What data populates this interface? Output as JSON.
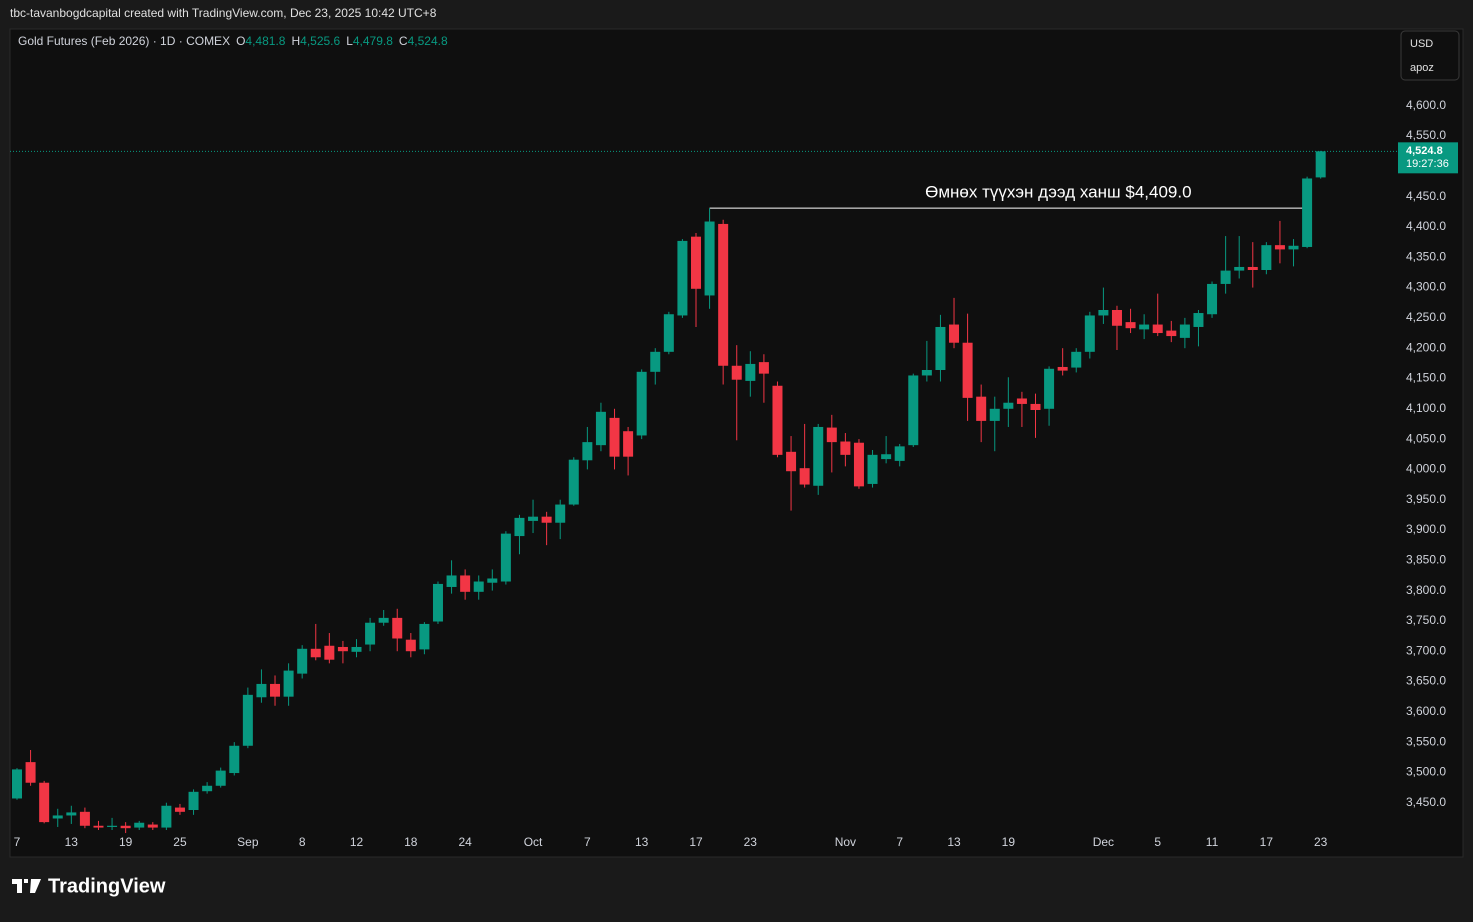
{
  "top_bar": "tbc-tavanbogdcapital created with TradingView.com, Dec 23, 2025 10:42 UTC+8",
  "logo": "TradingView",
  "header": {
    "symbol": "Gold Futures (Feb 2026) · 1D · COMEX",
    "ohlc": [
      {
        "key": "O",
        "label": "4,481.8"
      },
      {
        "key": "H",
        "label": "4,525.6"
      },
      {
        "key": "L",
        "label": "4,479.8"
      },
      {
        "key": "C",
        "label": "4,524.8"
      }
    ]
  },
  "currency": "USD",
  "unit_label": "apoz",
  "last_price": {
    "label": "4,524.8",
    "countdown": "19:27:36"
  },
  "chart_data": {
    "type": "candlestick",
    "annotation": "Өмнөх түүхэн дээд ханш $4,409.0",
    "up_color": "#089981",
    "down_color": "#f23645",
    "grid": false,
    "categories": [
      "7",
      null,
      null,
      null,
      "13",
      null,
      null,
      null,
      "19",
      null,
      null,
      null,
      "25",
      null,
      null,
      null,
      null,
      "Sep",
      null,
      null,
      null,
      "8",
      null,
      null,
      null,
      "12",
      null,
      null,
      null,
      "18",
      null,
      null,
      null,
      "24",
      null,
      null,
      null,
      null,
      "Oct",
      null,
      null,
      null,
      "7",
      null,
      null,
      null,
      "13",
      null,
      null,
      null,
      "17",
      null,
      null,
      null,
      "23",
      null,
      null,
      null,
      null,
      null,
      null,
      "Nov",
      null,
      null,
      null,
      "7",
      null,
      null,
      null,
      "13",
      null,
      null,
      null,
      "19",
      null,
      null,
      null,
      null,
      null,
      null,
      "Dec",
      null,
      null,
      null,
      "5",
      null,
      null,
      null,
      "11",
      null,
      null,
      null,
      "17",
      null,
      null,
      null,
      "23"
    ],
    "open": [
      3457,
      3517,
      3483,
      3424,
      3429,
      3435,
      3412,
      3410,
      3412,
      3409,
      3414,
      3409,
      3442,
      3438,
      3469,
      3478,
      3499,
      3544,
      3624,
      3646,
      3625,
      3663,
      3704,
      3709,
      3707,
      3699,
      3711,
      3747,
      3755,
      3719,
      3703,
      3749,
      3806,
      3825,
      3798,
      3813,
      3815,
      3890,
      3915,
      3922,
      3912,
      3942,
      4015,
      4040,
      4085,
      4063,
      4056,
      4161,
      4194,
      4254,
      4384,
      4287,
      4405,
      4171,
      4146,
      4177,
      4138,
      4029,
      4002,
      3973,
      4069,
      4046,
      4044,
      3976,
      4017,
      4014,
      4040,
      4155,
      4164,
      4239,
      4209,
      4120,
      4080,
      4100,
      4117,
      4108,
      4100,
      4169,
      4168,
      4194,
      4254,
      4263,
      4243,
      4231,
      4239,
      4229,
      4217,
      4235,
      4256,
      4306,
      4328,
      4334,
      4329,
      4370,
      4363,
      4367,
      4481.8
    ],
    "high": [
      3507,
      3537,
      3486,
      3440,
      3445,
      3442,
      3420,
      3425,
      3418,
      3420,
      3418,
      3450,
      3448,
      3472,
      3484,
      3508,
      3550,
      3640,
      3670,
      3660,
      3680,
      3710,
      3745,
      3730,
      3717,
      3720,
      3755,
      3768,
      3770,
      3730,
      3748,
      3815,
      3850,
      3835,
      3825,
      3835,
      3898,
      3925,
      3950,
      3930,
      3950,
      4020,
      4070,
      4110,
      4100,
      4070,
      4165,
      4200,
      4260,
      4380,
      4390,
      4431,
      4412,
      4205,
      4195,
      4190,
      4145,
      4055,
      4075,
      4075,
      4090,
      4060,
      4050,
      4032,
      4055,
      4042,
      4158,
      4212,
      4255,
      4283,
      4257,
      4140,
      4120,
      4152,
      4128,
      4125,
      4170,
      4200,
      4200,
      4260,
      4300,
      4270,
      4265,
      4256,
      4290,
      4245,
      4250,
      4263,
      4310,
      4385,
      4385,
      4375,
      4375,
      4410,
      4380,
      4483,
      4525.6
    ],
    "low": [
      3455,
      3478,
      3416,
      3410,
      3415,
      3408,
      3405,
      3405,
      3400,
      3405,
      3405,
      3405,
      3430,
      3430,
      3465,
      3475,
      3495,
      3540,
      3615,
      3610,
      3610,
      3655,
      3685,
      3680,
      3680,
      3690,
      3700,
      3742,
      3700,
      3690,
      3695,
      3745,
      3795,
      3785,
      3785,
      3800,
      3810,
      3860,
      3895,
      3875,
      3885,
      3940,
      4000,
      4030,
      4000,
      3990,
      4050,
      4140,
      4190,
      4250,
      4235,
      4265,
      4140,
      4048,
      4120,
      4110,
      4020,
      3932,
      3970,
      3958,
      3995,
      4005,
      3968,
      3970,
      4010,
      4005,
      4037,
      4145,
      4145,
      4200,
      4080,
      4045,
      4030,
      4070,
      4070,
      4052,
      4072,
      4155,
      4160,
      4183,
      4240,
      4197,
      4225,
      4215,
      4220,
      4210,
      4200,
      4203,
      4250,
      4290,
      4315,
      4300,
      4322,
      4340,
      4335,
      4365,
      4479.8
    ],
    "close": [
      3505,
      3483,
      3418,
      3429,
      3434,
      3412,
      3409,
      3412,
      3408,
      3417,
      3409,
      3445,
      3435,
      3468,
      3478,
      3503,
      3544,
      3628,
      3646,
      3625,
      3668,
      3704,
      3690,
      3686,
      3700,
      3707,
      3747,
      3755,
      3721,
      3700,
      3745,
      3811,
      3825,
      3798,
      3815,
      3820,
      3894,
      3920,
      3922,
      3912,
      3942,
      4016,
      4045,
      4095,
      4021,
      4021,
      4161,
      4194,
      4256,
      4377,
      4298,
      4409,
      4171,
      4148,
      4174,
      4158,
      4024,
      3997,
      3975,
      4070,
      4045,
      4024,
      3972,
      4024,
      4025,
      4038,
      4155,
      4164,
      4235,
      4209,
      4118,
      4080,
      4100,
      4110,
      4108,
      4098,
      4166,
      4163,
      4194,
      4254,
      4263,
      4237,
      4233,
      4239,
      4225,
      4220,
      4239,
      4258,
      4306,
      4328,
      4334,
      4329,
      4370,
      4363,
      4369,
      4480,
      4524.8
    ],
    "ylim": [
      3405,
      4725
    ],
    "yticks": [
      {
        "value": 3450,
        "label": "3,450.0"
      },
      {
        "value": 3500,
        "label": "3,500.0"
      },
      {
        "value": 3550,
        "label": "3,550.0"
      },
      {
        "value": 3600,
        "label": "3,600.0"
      },
      {
        "value": 3650,
        "label": "3,650.0"
      },
      {
        "value": 3700,
        "label": "3,700.0"
      },
      {
        "value": 3750,
        "label": "3,750.0"
      },
      {
        "value": 3800,
        "label": "3,800.0"
      },
      {
        "value": 3850,
        "label": "3,850.0"
      },
      {
        "value": 3900,
        "label": "3,900.0"
      },
      {
        "value": 3950,
        "label": "3,950.0"
      },
      {
        "value": 4000,
        "label": "4,000.0"
      },
      {
        "value": 4050,
        "label": "4,050.0"
      },
      {
        "value": 4100,
        "label": "4,100.0"
      },
      {
        "value": 4150,
        "label": "4,150.0"
      },
      {
        "value": 4200,
        "label": "4,200.0"
      },
      {
        "value": 4250,
        "label": "4,250.0"
      },
      {
        "value": 4300,
        "label": "4,300.0"
      },
      {
        "value": 4350,
        "label": "4,350.0"
      },
      {
        "value": 4400,
        "label": "4,400.0"
      },
      {
        "value": 4450,
        "label": "4,450.0"
      },
      {
        "value": 4500,
        "label": "4,500.0"
      },
      {
        "value": 4550,
        "label": "4,550.0"
      },
      {
        "value": 4600,
        "label": "4,600.0"
      }
    ]
  }
}
